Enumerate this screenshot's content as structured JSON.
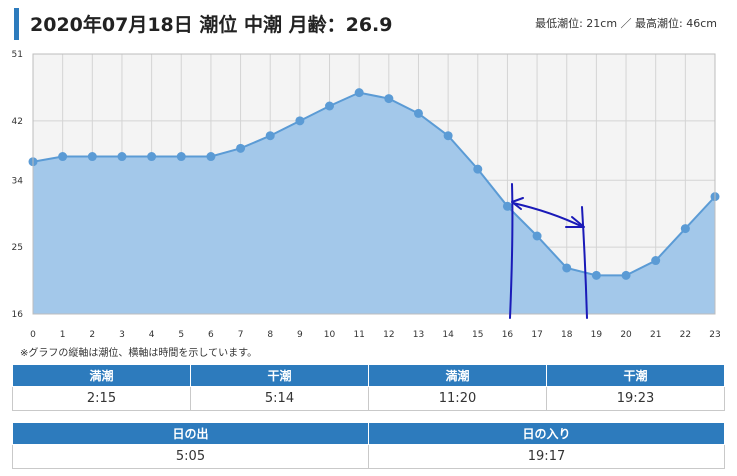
{
  "header": {
    "title": "2020年07月18日 潮位 中潮 月齢：26.9",
    "tide_range": "最低潮位: 21cm ／  最高潮位: 46cm"
  },
  "note": "※グラフの縦軸は潮位、横軸は時間を示しています。",
  "tide_table": {
    "headers": [
      "満潮",
      "干潮",
      "満潮",
      "干潮"
    ],
    "values": [
      "2:15",
      "5:14",
      "11:20",
      "19:23"
    ]
  },
  "sun_table": {
    "headers": [
      "日の出",
      "日の入り"
    ],
    "values": [
      "5:05",
      "19:17"
    ]
  },
  "colors": {
    "line": "#5b9bd5",
    "fill": "#a3c8ea",
    "plot_background": "#f4f4f4",
    "grid": "#d4d4d4",
    "annotation": "#1a1ab8",
    "table_header": "#2d7bbd"
  },
  "chart_data": {
    "type": "area",
    "x": [
      0,
      1,
      2,
      3,
      4,
      5,
      6,
      7,
      8,
      9,
      10,
      11,
      12,
      13,
      14,
      15,
      16,
      17,
      18,
      19,
      20,
      21,
      22,
      23
    ],
    "values": [
      36.5,
      37.2,
      37.2,
      37.2,
      37.2,
      37.2,
      37.2,
      38.3,
      40.0,
      42.0,
      44.0,
      45.8,
      45.0,
      43.0,
      40.0,
      35.5,
      30.5,
      26.5,
      22.2,
      21.2,
      21.2,
      23.2,
      27.5,
      31.8
    ],
    "x_ticks": [
      "0",
      "1",
      "2",
      "3",
      "4",
      "5",
      "6",
      "7",
      "8",
      "9",
      "10",
      "11",
      "12",
      "13",
      "14",
      "15",
      "16",
      "17",
      "18",
      "19",
      "20",
      "21",
      "22",
      "23"
    ],
    "y_ticks": [
      16,
      25,
      34,
      42,
      51
    ],
    "ylim": [
      16,
      51
    ],
    "xlim": [
      0,
      23
    ],
    "grid": true,
    "annotation": "hand-drawn vertical lines near x=16.1 and x=18.6 joined by a double-headed arrow"
  }
}
